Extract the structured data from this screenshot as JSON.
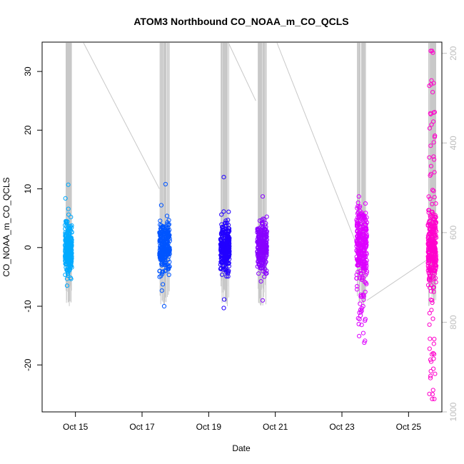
{
  "chart_data": {
    "type": "scatter",
    "title": "ATOM3 Northbound CO_NOAA_m_CO_QCLS",
    "xlabel": "Date",
    "ylabel": "CO_NOAA_m_CO_QCLS",
    "xlim": [
      "2017-10-14",
      "2017-10-26"
    ],
    "ylim": [
      -28,
      35
    ],
    "x_ticks": [
      {
        "date": "2017-10-15",
        "label": "Oct 15"
      },
      {
        "date": "2017-10-17",
        "label": "Oct 17"
      },
      {
        "date": "2017-10-19",
        "label": "Oct 19"
      },
      {
        "date": "2017-10-21",
        "label": "Oct 21"
      },
      {
        "date": "2017-10-23",
        "label": "Oct 23"
      },
      {
        "date": "2017-10-25",
        "label": "Oct 25"
      }
    ],
    "y_ticks": [
      -20,
      -10,
      0,
      10,
      20,
      30
    ],
    "right_axis": {
      "description": "altitude trace (grey line), inverted scale",
      "range": [
        1000,
        175
      ],
      "ticks": [
        200,
        400,
        600,
        800,
        1000
      ],
      "color": "#bebebe"
    },
    "flights": [
      {
        "date": "2017-10-14",
        "start_hour": 16.5,
        "end_hour": 21.5,
        "color": "#00AAFF",
        "y_min": -6.5,
        "y_max": 10.7
      },
      {
        "date": "2017-10-17",
        "start_hour": 12.5,
        "end_hour": 20.0,
        "color": "#0055FF",
        "y_min": -10.0,
        "y_max": 10.8
      },
      {
        "date": "2017-10-19",
        "start_hour": 8.5,
        "end_hour": 15.0,
        "color": "#2200FF",
        "y_min": -10.3,
        "y_max": 12.0
      },
      {
        "date": "2017-10-20",
        "start_hour": 11.0,
        "end_hour": 18.0,
        "color": "#8800FF",
        "y_min": -9.0,
        "y_max": 8.7
      },
      {
        "date": "2017-10-23",
        "start_hour": 10.5,
        "end_hour": 18.0,
        "color": "#DD00FF",
        "y_min": -16.2,
        "y_max": 8.7
      },
      {
        "date": "2017-10-25",
        "start_hour": 14.0,
        "end_hour": 20.0,
        "color": "#FF00CC",
        "y_min": -25.8,
        "y_max": 33.5
      }
    ]
  }
}
